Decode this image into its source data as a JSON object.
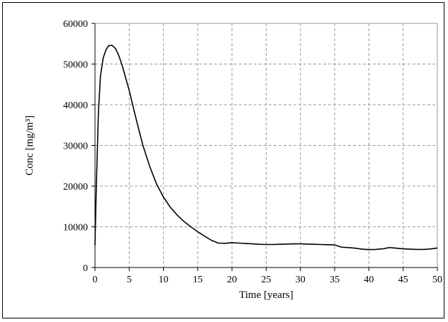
{
  "chart_data": {
    "type": "line",
    "title": "",
    "xlabel": "Time [years]",
    "ylabel": "Conc [mg/m³]",
    "xlim": [
      0,
      50
    ],
    "ylim": [
      0,
      60000
    ],
    "x_ticks": [
      0,
      5,
      10,
      15,
      20,
      25,
      30,
      35,
      40,
      45,
      50
    ],
    "y_ticks": [
      0,
      10000,
      20000,
      30000,
      40000,
      50000,
      60000
    ],
    "grid": true,
    "line_color": "#000000",
    "series": [
      {
        "x": [
          0,
          0.2,
          0.5,
          0.8,
          1.2,
          1.6,
          2.0,
          2.5,
          3.0,
          3.5,
          4.0,
          5.0,
          6.0,
          7.0,
          8.0,
          9.0,
          10.0,
          11.0,
          12.0,
          13.0,
          14.0,
          15.0,
          16.0,
          17.0,
          18.0,
          19.0,
          20.0,
          21.0,
          22.0,
          23.0,
          24.0,
          25.0,
          26.0,
          27.0,
          28.0,
          29.0,
          30.0,
          31.0,
          32.0,
          33.0,
          34.0,
          35.0,
          36.0,
          37.0,
          38.0,
          39.0,
          40.0,
          41.0,
          42.0,
          43.0,
          44.0,
          45.0,
          46.0,
          47.0,
          48.0,
          49.0,
          50.0
        ],
        "y": [
          5500,
          20000,
          38000,
          47000,
          51500,
          53500,
          54500,
          54600,
          53800,
          52000,
          49500,
          43500,
          36500,
          30000,
          24800,
          20500,
          17300,
          14800,
          12900,
          11300,
          10000,
          8800,
          7700,
          6700,
          6000,
          5950,
          6100,
          6000,
          5900,
          5800,
          5700,
          5650,
          5650,
          5700,
          5750,
          5800,
          5800,
          5750,
          5700,
          5650,
          5600,
          5550,
          5000,
          4900,
          4750,
          4500,
          4400,
          4450,
          4600,
          4900,
          4750,
          4600,
          4500,
          4450,
          4450,
          4550,
          4800
        ]
      }
    ]
  }
}
